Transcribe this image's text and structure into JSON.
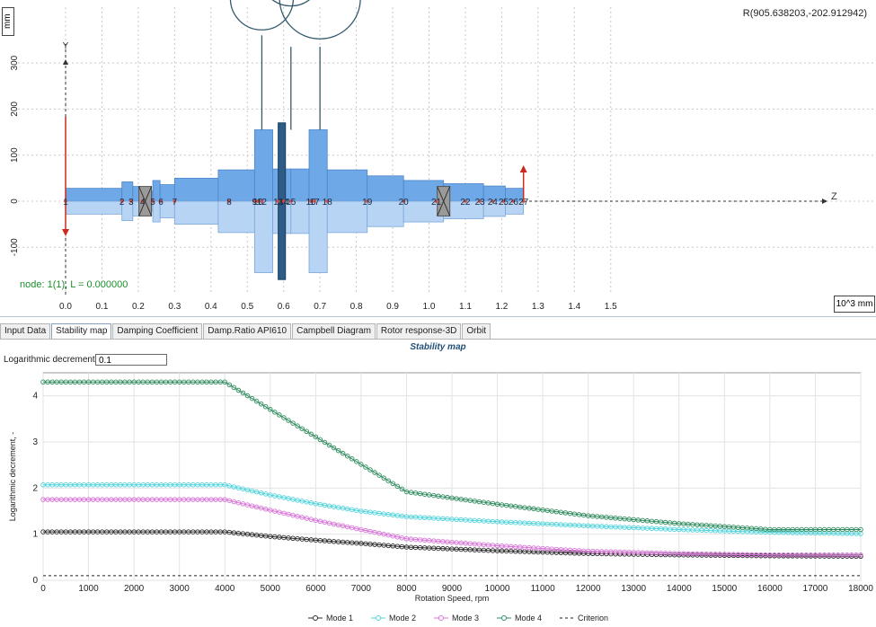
{
  "rotor_view": {
    "coordinate_readout": "R(905.638203,-202.912942)",
    "y_axis_unit": "mm",
    "y_axis_label": "Y",
    "z_axis_label": "Z",
    "z_axis_unit": "10^3 mm",
    "x_ticks": [
      "0.0",
      "0.1",
      "0.2",
      "0.3",
      "0.4",
      "0.5",
      "0.6",
      "0.7",
      "0.8",
      "0.9",
      "1.0",
      "1.1",
      "1.2",
      "1.3",
      "1.4",
      "1.5"
    ],
    "y_ticks": [
      "300",
      "200",
      "100",
      "0",
      "-100"
    ],
    "node_info": "node: 1(1), L = 0.000000",
    "node_labels": [
      "1",
      "2",
      "3",
      "4",
      "5",
      "6",
      "7",
      "8",
      "9",
      "10",
      "12",
      "13",
      "14",
      "15",
      "16",
      "17",
      "18",
      "19",
      "20",
      "21",
      "22",
      "23",
      "24",
      "25",
      "26",
      "27"
    ]
  },
  "tabs": [
    {
      "label": "Input Data",
      "active": false
    },
    {
      "label": "Stability map",
      "active": true
    },
    {
      "label": "Damping Coefficient",
      "active": false
    },
    {
      "label": "Damp.Ratio API610",
      "active": false
    },
    {
      "label": "Campbell Diagram",
      "active": false
    },
    {
      "label": "Rotor response-3D",
      "active": false
    },
    {
      "label": "Orbit",
      "active": false
    }
  ],
  "stability": {
    "panel_title": "Stability map",
    "log_dec_label": "Logarithmic decrement:",
    "log_dec_value": "0.1"
  },
  "chart_data": {
    "type": "line",
    "title": "",
    "xlabel": "Rotation Speed, rpm",
    "ylabel": "Logarithmic decrement, -",
    "xlim": [
      0,
      18000
    ],
    "ylim": [
      0,
      4.5
    ],
    "x_ticks": [
      0,
      1000,
      2000,
      3000,
      4000,
      5000,
      6000,
      7000,
      8000,
      9000,
      10000,
      11000,
      12000,
      13000,
      14000,
      15000,
      16000,
      17000,
      18000
    ],
    "y_ticks": [
      0,
      1,
      2,
      3,
      4
    ],
    "grid": true,
    "legend_position": "bottom",
    "series": [
      {
        "name": "Mode 1",
        "color": "#2b2b2b",
        "marker": "circle",
        "x": [
          0,
          4000,
          5000,
          6000,
          7000,
          8000,
          10000,
          12000,
          14000,
          16000,
          18000
        ],
        "y": [
          1.05,
          1.05,
          0.95,
          0.87,
          0.8,
          0.72,
          0.64,
          0.58,
          0.55,
          0.53,
          0.52
        ]
      },
      {
        "name": "Mode 2",
        "color": "#4fd3dc",
        "marker": "circle",
        "x": [
          0,
          4000,
          5000,
          6000,
          7000,
          8000,
          10000,
          12000,
          14000,
          16000,
          18000
        ],
        "y": [
          2.07,
          2.07,
          1.85,
          1.66,
          1.5,
          1.38,
          1.27,
          1.18,
          1.1,
          1.04,
          1.01
        ]
      },
      {
        "name": "Mode 3",
        "color": "#d773d8",
        "marker": "circle",
        "x": [
          0,
          4000,
          5000,
          6000,
          7000,
          8000,
          10000,
          12000,
          14000,
          16000,
          18000
        ],
        "y": [
          1.75,
          1.75,
          1.52,
          1.3,
          1.1,
          0.9,
          0.75,
          0.63,
          0.58,
          0.55,
          0.55
        ]
      },
      {
        "name": "Mode 4",
        "color": "#2f8b5e",
        "marker": "circle",
        "x": [
          0,
          4000,
          8000,
          10000,
          12000,
          14000,
          16000,
          18000
        ],
        "y": [
          4.3,
          4.3,
          1.92,
          1.65,
          1.4,
          1.23,
          1.1,
          1.1
        ]
      },
      {
        "name": "Criterion",
        "color": "#222222",
        "marker": "dash",
        "x": [
          0,
          18000
        ],
        "y": [
          0.1,
          0.1
        ]
      }
    ]
  }
}
